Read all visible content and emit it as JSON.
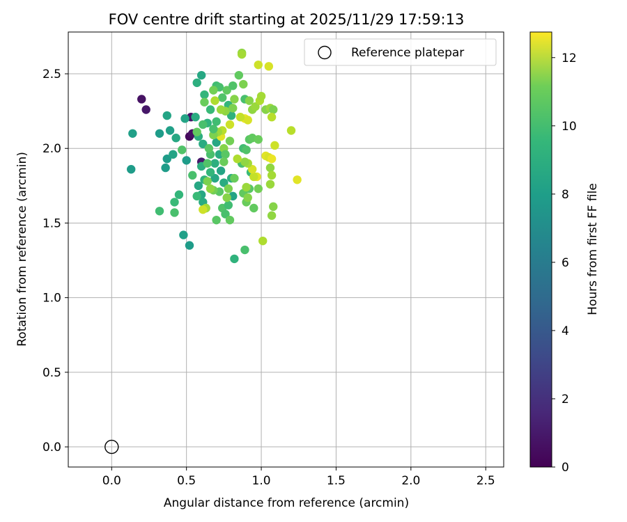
{
  "chart_data": {
    "type": "scatter",
    "title": "FOV centre drift starting at 2025/11/29 17:59:13",
    "xlabel": "Angular distance from reference (arcmin)",
    "ylabel": "Rotation from reference (arcmin)",
    "xlim": [
      -0.29,
      2.62
    ],
    "ylim": [
      -0.135,
      2.78
    ],
    "xticks": [
      0.0,
      0.5,
      1.0,
      1.5,
      2.0,
      2.5
    ],
    "xtick_labels": [
      "0.0",
      "0.5",
      "1.0",
      "1.5",
      "2.0",
      "2.5"
    ],
    "yticks": [
      0.0,
      0.5,
      1.0,
      1.5,
      2.0,
      2.5
    ],
    "ytick_labels": [
      "0.0",
      "0.5",
      "1.0",
      "1.5",
      "2.0",
      "2.5"
    ],
    "grid": true,
    "legend": {
      "position": "upper right",
      "entries": [
        "Reference platepar"
      ]
    },
    "reference_point": {
      "x": 0.0,
      "y": 0.0,
      "label": "Reference platepar"
    },
    "colorbar": {
      "label": "Hours from first FF file",
      "colormap": "viridis",
      "range": [
        0,
        12.75
      ],
      "ticks": [
        0,
        2,
        4,
        6,
        8,
        10,
        12
      ],
      "tick_labels": [
        "0",
        "2",
        "4",
        "6",
        "8",
        "10",
        "12"
      ]
    },
    "points": [
      [
        0.2,
        2.33,
        0.6
      ],
      [
        0.23,
        2.26,
        0.8
      ],
      [
        0.52,
        2.08,
        0.3
      ],
      [
        0.54,
        2.1,
        0.5
      ],
      [
        0.53,
        2.21,
        0.7
      ],
      [
        0.6,
        1.91,
        0.9
      ],
      [
        0.14,
        2.1,
        7.2
      ],
      [
        0.13,
        1.86,
        7.0
      ],
      [
        0.32,
        2.1,
        7.0
      ],
      [
        0.37,
        2.22,
        7.4
      ],
      [
        0.39,
        2.12,
        7.2
      ],
      [
        0.37,
        1.93,
        7.0
      ],
      [
        0.36,
        1.87,
        7.0
      ],
      [
        0.41,
        1.96,
        7.4
      ],
      [
        0.43,
        2.07,
        7.6
      ],
      [
        0.49,
        2.2,
        7.4
      ],
      [
        0.5,
        1.92,
        7.0
      ],
      [
        0.48,
        1.42,
        7.2
      ],
      [
        0.52,
        1.35,
        7.0
      ],
      [
        0.57,
        2.44,
        8.0
      ],
      [
        0.6,
        2.49,
        7.6
      ],
      [
        0.62,
        2.36,
        8.4
      ],
      [
        0.56,
        2.21,
        7.8
      ],
      [
        0.58,
        2.08,
        8.0
      ],
      [
        0.61,
        2.03,
        7.8
      ],
      [
        0.64,
        2.17,
        8.2
      ],
      [
        0.66,
        2.26,
        8.6
      ],
      [
        0.7,
        2.42,
        8.8
      ],
      [
        0.72,
        2.41,
        9.0
      ],
      [
        0.74,
        2.34,
        9.2
      ],
      [
        0.76,
        2.25,
        9.0
      ],
      [
        0.78,
        2.29,
        8.4
      ],
      [
        0.8,
        2.22,
        8.2
      ],
      [
        0.7,
        2.04,
        7.6
      ],
      [
        0.72,
        1.96,
        7.8
      ],
      [
        0.69,
        1.9,
        8.0
      ],
      [
        0.73,
        1.85,
        7.4
      ],
      [
        0.69,
        1.8,
        7.6
      ],
      [
        0.75,
        1.77,
        7.8
      ],
      [
        0.8,
        1.8,
        8.0
      ],
      [
        0.81,
        1.68,
        7.4
      ],
      [
        0.6,
        1.69,
        7.6
      ],
      [
        0.61,
        1.64,
        7.8
      ],
      [
        0.63,
        1.6,
        7.4
      ],
      [
        0.58,
        1.75,
        7.6
      ],
      [
        0.62,
        1.79,
        8.2
      ],
      [
        0.66,
        1.84,
        8.4
      ],
      [
        0.6,
        1.88,
        8.0
      ],
      [
        0.57,
        1.68,
        8.6
      ],
      [
        0.45,
        1.69,
        8.4
      ],
      [
        0.42,
        1.64,
        8.6
      ],
      [
        0.32,
        1.58,
        8.8
      ],
      [
        0.42,
        1.57,
        9.0
      ],
      [
        0.47,
        1.99,
        9.2
      ],
      [
        0.54,
        1.82,
        9.0
      ],
      [
        0.64,
        1.9,
        9.2
      ],
      [
        0.66,
        1.96,
        9.0
      ],
      [
        0.72,
        1.71,
        9.4
      ],
      [
        0.74,
        1.6,
        9.2
      ],
      [
        0.76,
        1.56,
        9.0
      ],
      [
        0.7,
        1.52,
        9.4
      ],
      [
        0.78,
        1.62,
        8.8
      ],
      [
        0.79,
        1.52,
        9.6
      ],
      [
        0.82,
        1.26,
        8.2
      ],
      [
        0.89,
        1.32,
        9.0
      ],
      [
        0.88,
        1.7,
        9.6
      ],
      [
        0.9,
        1.64,
        9.8
      ],
      [
        0.92,
        1.73,
        9.4
      ],
      [
        0.95,
        1.6,
        9.6
      ],
      [
        0.98,
        1.73,
        10.0
      ],
      [
        0.93,
        1.84,
        8.6
      ],
      [
        0.87,
        1.9,
        9.0
      ],
      [
        0.88,
        2.0,
        8.8
      ],
      [
        0.9,
        1.99,
        9.2
      ],
      [
        0.92,
        2.06,
        9.4
      ],
      [
        0.94,
        2.07,
        9.6
      ],
      [
        0.98,
        2.06,
        9.8
      ],
      [
        0.85,
        2.49,
        9.6
      ],
      [
        0.88,
        2.43,
        10.2
      ],
      [
        0.87,
        2.64,
        10.6
      ],
      [
        0.87,
        2.63,
        11.0
      ],
      [
        0.89,
        2.33,
        9.0
      ],
      [
        0.92,
        2.32,
        10.4
      ],
      [
        0.94,
        2.26,
        10.6
      ],
      [
        0.96,
        2.28,
        10.8
      ],
      [
        0.99,
        2.32,
        11.2
      ],
      [
        1.0,
        2.35,
        11.0
      ],
      [
        0.98,
        2.56,
        11.8
      ],
      [
        1.05,
        2.55,
        12.0
      ],
      [
        1.03,
        2.26,
        10.4
      ],
      [
        1.06,
        2.27,
        10.8
      ],
      [
        1.08,
        2.26,
        10.2
      ],
      [
        1.07,
        2.21,
        11.4
      ],
      [
        1.09,
        2.02,
        11.8
      ],
      [
        1.03,
        1.95,
        12.2
      ],
      [
        1.05,
        1.94,
        12.0
      ],
      [
        1.07,
        1.93,
        12.4
      ],
      [
        1.06,
        1.87,
        10.6
      ],
      [
        1.07,
        1.82,
        11.0
      ],
      [
        1.06,
        1.76,
        10.8
      ],
      [
        1.08,
        1.61,
        10.4
      ],
      [
        1.07,
        1.55,
        10.6
      ],
      [
        1.01,
        1.38,
        11.2
      ],
      [
        1.2,
        2.12,
        11.4
      ],
      [
        1.24,
        1.79,
        12.2
      ],
      [
        0.97,
        1.81,
        12.2
      ],
      [
        0.95,
        1.81,
        11.6
      ],
      [
        0.94,
        1.86,
        12.0
      ],
      [
        0.91,
        1.9,
        11.0
      ],
      [
        0.89,
        1.91,
        10.6
      ],
      [
        0.84,
        1.93,
        11.2
      ],
      [
        0.9,
        1.74,
        10.8
      ],
      [
        0.91,
        1.67,
        10.4
      ],
      [
        0.89,
        2.2,
        12.4
      ],
      [
        0.91,
        2.19,
        12.0
      ],
      [
        0.86,
        2.21,
        11.6
      ],
      [
        0.79,
        2.16,
        11.8
      ],
      [
        0.76,
        2.25,
        10.6
      ],
      [
        0.73,
        2.26,
        10.8
      ],
      [
        0.69,
        2.32,
        11.2
      ],
      [
        0.73,
        2.08,
        12.2
      ],
      [
        0.74,
        2.12,
        11.4
      ],
      [
        0.71,
        2.11,
        10.8
      ],
      [
        0.68,
        2.09,
        10.2
      ],
      [
        0.75,
        2.0,
        10.4
      ],
      [
        0.79,
        2.05,
        10.0
      ],
      [
        0.76,
        1.96,
        9.4
      ],
      [
        0.68,
        1.72,
        10.0
      ],
      [
        0.63,
        1.6,
        11.0
      ],
      [
        0.61,
        1.59,
        11.8
      ],
      [
        0.64,
        1.78,
        10.2
      ],
      [
        0.66,
        1.73,
        10.6
      ],
      [
        0.78,
        1.73,
        10.2
      ],
      [
        0.82,
        1.8,
        9.8
      ],
      [
        0.77,
        1.67,
        10.4
      ],
      [
        0.75,
        1.91,
        9.8
      ],
      [
        0.62,
        2.31,
        9.8
      ],
      [
        0.68,
        2.39,
        10.0
      ],
      [
        0.77,
        2.39,
        9.6
      ],
      [
        0.81,
        2.42,
        9.2
      ],
      [
        0.82,
        2.33,
        10.4
      ],
      [
        0.81,
        2.27,
        10.2
      ],
      [
        0.57,
        2.11,
        9.6
      ],
      [
        0.61,
        2.16,
        9.0
      ],
      [
        0.65,
        2.0,
        9.4
      ],
      [
        0.68,
        2.13,
        9.0
      ],
      [
        0.7,
        2.18,
        8.8
      ]
    ]
  }
}
